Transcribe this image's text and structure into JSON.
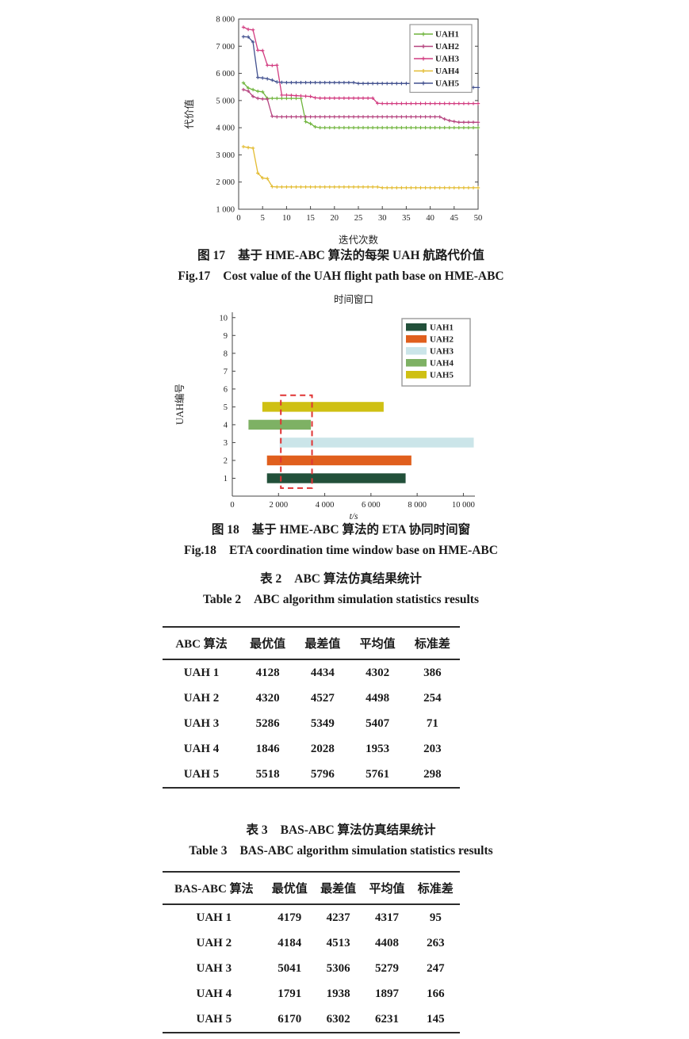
{
  "figure17": {
    "caption_zh_label": "图 17",
    "caption_zh_text": "基于 HME-ABC 算法的每架 UAH 航路代价值",
    "caption_en_label": "Fig.17",
    "caption_en_text": "Cost value of the UAH flight path base on HME-ABC"
  },
  "figure18": {
    "caption_zh_label": "图 18",
    "caption_zh_text": "基于 HME-ABC 算法的 ETA 协同时间窗",
    "caption_en_label": "Fig.18",
    "caption_en_text": "ETA coordination time window base on HME-ABC"
  },
  "table2": {
    "caption_zh_label": "表 2",
    "caption_zh_text": "ABC 算法仿真结果统计",
    "caption_en_label": "Table 2",
    "caption_en_text": "ABC algorithm simulation statistics results",
    "headers": [
      "ABC 算法",
      "最优值",
      "最差值",
      "平均值",
      "标准差"
    ],
    "rows": [
      [
        "UAH 1",
        "4128",
        "4434",
        "4302",
        "386"
      ],
      [
        "UAH 2",
        "4320",
        "4527",
        "4498",
        "254"
      ],
      [
        "UAH 3",
        "5286",
        "5349",
        "5407",
        "71"
      ],
      [
        "UAH 4",
        "1846",
        "2028",
        "1953",
        "203"
      ],
      [
        "UAH 5",
        "5518",
        "5796",
        "5761",
        "298"
      ]
    ]
  },
  "table3": {
    "caption_zh_label": "表 3",
    "caption_zh_text": "BAS-ABC 算法仿真结果统计",
    "caption_en_label": "Table 3",
    "caption_en_text": "BAS-ABC algorithm simulation statistics results",
    "headers": [
      "BAS-ABC 算法",
      "最优值",
      "最差值",
      "平均值",
      "标准差"
    ],
    "rows": [
      [
        "UAH 1",
        "4179",
        "4237",
        "4317",
        "95"
      ],
      [
        "UAH 2",
        "4184",
        "4513",
        "4408",
        "263"
      ],
      [
        "UAH 3",
        "5041",
        "5306",
        "5279",
        "247"
      ],
      [
        "UAH 4",
        "1791",
        "1938",
        "1897",
        "166"
      ],
      [
        "UAH 5",
        "6170",
        "6302",
        "6231",
        "145"
      ]
    ]
  },
  "chart_data": [
    {
      "type": "line",
      "title": "",
      "xlabel": "迭代次数",
      "ylabel": "代价值",
      "xlim": [
        0,
        50
      ],
      "ylim": [
        1000,
        8000
      ],
      "xticks": [
        0,
        5,
        10,
        15,
        20,
        25,
        30,
        35,
        40,
        45,
        50
      ],
      "yticks": [
        1000,
        2000,
        3000,
        4000,
        5000,
        6000,
        7000,
        8000
      ],
      "grid": false,
      "legend_position": "top-right",
      "marker": "plus",
      "series": [
        {
          "name": "UAH1",
          "color": "#6fb43c",
          "values": [
            5650,
            5460,
            5400,
            5340,
            5320,
            5080,
            5080,
            5080,
            5080,
            5080,
            5080,
            5080,
            5080,
            4220,
            4150,
            4030,
            4000,
            4000,
            4000,
            4000,
            4000,
            4000,
            4000,
            4000,
            4000,
            4000,
            4000,
            4000,
            4000,
            4000,
            4000,
            4000,
            4000,
            4000,
            4000,
            4000,
            4000,
            4000,
            4000,
            4000,
            4000,
            4000,
            4000,
            4000,
            4000,
            4000,
            4000,
            4000,
            4000,
            4000
          ]
        },
        {
          "name": "UAH2",
          "color": "#b5437f",
          "values": [
            5400,
            5350,
            5150,
            5080,
            5060,
            5050,
            4420,
            4400,
            4400,
            4400,
            4400,
            4400,
            4400,
            4400,
            4400,
            4400,
            4400,
            4400,
            4400,
            4400,
            4400,
            4400,
            4400,
            4400,
            4400,
            4400,
            4400,
            4400,
            4400,
            4400,
            4400,
            4400,
            4400,
            4400,
            4400,
            4400,
            4400,
            4400,
            4400,
            4400,
            4400,
            4400,
            4320,
            4260,
            4230,
            4200,
            4200,
            4200,
            4200,
            4200
          ]
        },
        {
          "name": "UAH3",
          "color": "#d23c80",
          "values": [
            7700,
            7620,
            7600,
            6850,
            6840,
            6300,
            6290,
            6300,
            5200,
            5200,
            5190,
            5180,
            5170,
            5160,
            5150,
            5100,
            5090,
            5090,
            5090,
            5090,
            5090,
            5090,
            5090,
            5090,
            5090,
            5090,
            5090,
            5090,
            4900,
            4890,
            4890,
            4890,
            4890,
            4890,
            4890,
            4890,
            4890,
            4890,
            4890,
            4890,
            4890,
            4890,
            4890,
            4890,
            4890,
            4890,
            4890,
            4890,
            4890,
            4890
          ]
        },
        {
          "name": "UAH4",
          "color": "#e3bc32",
          "values": [
            3300,
            3270,
            3250,
            2330,
            2150,
            2130,
            1830,
            1820,
            1820,
            1820,
            1820,
            1820,
            1820,
            1820,
            1820,
            1820,
            1820,
            1820,
            1820,
            1820,
            1820,
            1820,
            1820,
            1820,
            1820,
            1820,
            1820,
            1820,
            1820,
            1790,
            1790,
            1790,
            1790,
            1790,
            1790,
            1790,
            1790,
            1790,
            1790,
            1790,
            1790,
            1790,
            1790,
            1790,
            1790,
            1790,
            1790,
            1790,
            1790,
            1790
          ]
        },
        {
          "name": "UAH5",
          "color": "#42518f",
          "values": [
            7350,
            7340,
            7150,
            5850,
            5830,
            5800,
            5750,
            5680,
            5670,
            5660,
            5660,
            5660,
            5660,
            5660,
            5660,
            5660,
            5660,
            5660,
            5660,
            5660,
            5660,
            5660,
            5660,
            5660,
            5630,
            5630,
            5630,
            5630,
            5630,
            5630,
            5630,
            5630,
            5630,
            5630,
            5630,
            5630,
            5630,
            5630,
            5630,
            5630,
            5550,
            5520,
            5480,
            5480,
            5480,
            5480,
            5480,
            5480,
            5480,
            5480
          ]
        }
      ]
    },
    {
      "type": "bar",
      "orientation": "horizontal-range",
      "title": "时间窗口",
      "xlabel": "t/s",
      "ylabel": "UAH编号",
      "xlim": [
        0,
        10500
      ],
      "ylim": [
        0,
        10.3
      ],
      "xticks": [
        0,
        2000,
        4000,
        6000,
        8000,
        10000
      ],
      "yticks": [
        1,
        2,
        3,
        4,
        5,
        6,
        7,
        8,
        9,
        10
      ],
      "legend_position": "top-right",
      "bars": [
        {
          "name": "UAH1",
          "y": 1,
          "start": 1500,
          "end": 7500,
          "color": "#22503a"
        },
        {
          "name": "UAH2",
          "y": 2,
          "start": 1500,
          "end": 7750,
          "color": "#e05f1d"
        },
        {
          "name": "UAH3",
          "y": 3,
          "start": 2050,
          "end": 10450,
          "color": "#cbe5e9"
        },
        {
          "name": "UAH4",
          "y": 4,
          "start": 700,
          "end": 3400,
          "color": "#7eb164"
        },
        {
          "name": "UAH5",
          "y": 5,
          "start": 1300,
          "end": 6550,
          "color": "#cfc013"
        }
      ],
      "highlight_rect": {
        "x0": 2100,
        "x1": 3450,
        "y0": 0.45,
        "y1": 5.65,
        "color": "#e03434",
        "style": "dashed"
      }
    }
  ]
}
